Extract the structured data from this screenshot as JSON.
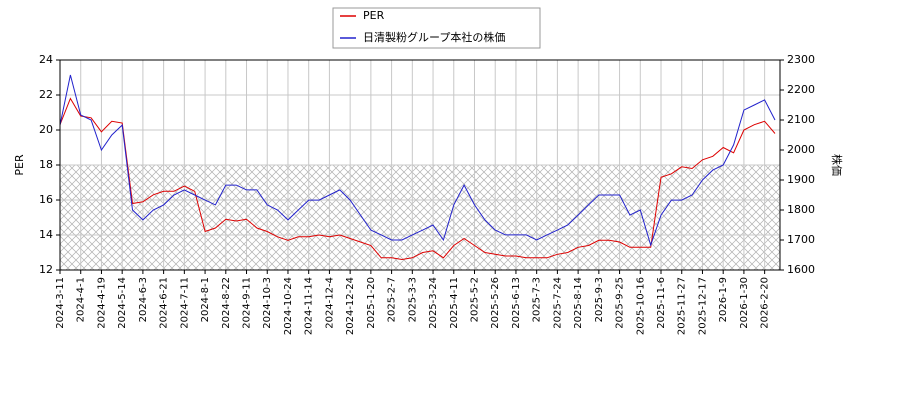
{
  "chart_data": {
    "type": "line",
    "categories": [
      "2024-3-11",
      null,
      "2024-4-1",
      null,
      "2024-4-19",
      null,
      "2024-5-14",
      null,
      "2024-6-3",
      null,
      "2024-6-21",
      null,
      "2024-7-11",
      null,
      "2024-8-1",
      null,
      "2024-8-22",
      null,
      "2024-9-11",
      null,
      "2024-10-3",
      null,
      "2024-10-24",
      null,
      "2024-11-14",
      null,
      "2024-12-4",
      null,
      "2024-12-24",
      null,
      "2025-1-20",
      null,
      "2025-2-7",
      null,
      "2025-3-3",
      null,
      "2025-3-24",
      null,
      "2025-4-11",
      null,
      "2025-5-2",
      null,
      "2025-5-26",
      null,
      "2025-6-13",
      null,
      "2025-7-3",
      null,
      "2025-7-24",
      null,
      "2025-8-14",
      null,
      "2025-9-3",
      null,
      "2025-9-25",
      null,
      "2025-10-16",
      null,
      "2025-11-6",
      null,
      "2025-11-27",
      null,
      "2025-12-17",
      null,
      "2026-1-9",
      null,
      "2026-1-30",
      null,
      "2026-2-20",
      null
    ],
    "series": [
      {
        "name": "PER",
        "color": "#dd0000",
        "axis": "y",
        "values": [
          20.3,
          21.8,
          20.8,
          20.7,
          19.9,
          20.5,
          20.4,
          15.8,
          15.9,
          16.3,
          16.5,
          16.5,
          16.8,
          16.5,
          14.2,
          14.4,
          14.9,
          14.8,
          14.9,
          14.4,
          14.2,
          13.9,
          13.7,
          13.9,
          13.9,
          14.0,
          13.9,
          14.0,
          13.8,
          13.6,
          13.4,
          12.7,
          12.7,
          12.6,
          12.7,
          13.0,
          13.1,
          12.7,
          13.4,
          13.8,
          13.4,
          13.0,
          12.9,
          12.8,
          12.8,
          12.7,
          12.7,
          12.7,
          12.9,
          13.0,
          13.3,
          13.4,
          13.7,
          13.7,
          13.6,
          13.3,
          13.3,
          13.3,
          17.3,
          17.5,
          17.9,
          17.8,
          18.3,
          18.5,
          19.0,
          18.7,
          20.0,
          20.3,
          20.5,
          19.8
        ]
      },
      {
        "name": "日清製粉グループ本社の株価",
        "color": "#2222cc",
        "axis": "y2",
        "values": [
          2083,
          2250,
          2117,
          2100,
          2000,
          2050,
          2083,
          1800,
          1767,
          1800,
          1817,
          1850,
          1867,
          1850,
          1833,
          1817,
          1883,
          1883,
          1867,
          1867,
          1817,
          1800,
          1767,
          1800,
          1833,
          1833,
          1850,
          1867,
          1833,
          1783,
          1733,
          1717,
          1700,
          1700,
          1717,
          1733,
          1750,
          1700,
          1817,
          1883,
          1817,
          1767,
          1733,
          1717,
          1717,
          1717,
          1700,
          1717,
          1733,
          1750,
          1783,
          1817,
          1850,
          1850,
          1850,
          1783,
          1800,
          1683,
          1783,
          1833,
          1833,
          1850,
          1900,
          1933,
          1950,
          2017,
          2133,
          2150,
          2167,
          2100
        ]
      }
    ],
    "ylabel": "PER",
    "y2label": "株価",
    "ylim": [
      12,
      24
    ],
    "yticks": [
      12,
      14,
      16,
      18,
      20,
      22,
      24
    ],
    "y2lim": [
      1600,
      2300
    ],
    "y2ticks": [
      1600,
      1700,
      1800,
      1900,
      2000,
      2100,
      2200,
      2300
    ],
    "shaded_range": [
      12,
      18
    ],
    "grid": true,
    "legend": "top"
  }
}
